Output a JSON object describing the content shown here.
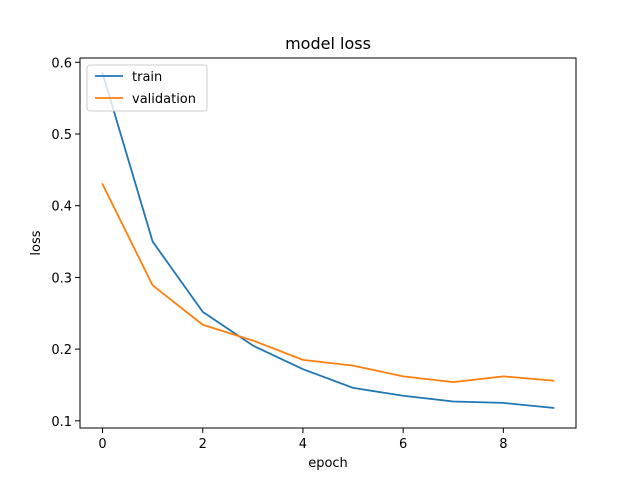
{
  "chart_data": {
    "type": "line",
    "title": "model loss",
    "xlabel": "epoch",
    "ylabel": "loss",
    "x": [
      0,
      1,
      2,
      3,
      4,
      5,
      6,
      7,
      8,
      9
    ],
    "xlim": [
      -0.45,
      9.45
    ],
    "ylim": [
      0.09,
      0.606
    ],
    "xticks": [
      0,
      2,
      4,
      6,
      8
    ],
    "yticks": [
      0.1,
      0.2,
      0.3,
      0.4,
      0.5,
      0.6
    ],
    "grid": false,
    "legend_position": "upper-left",
    "series": [
      {
        "name": "train",
        "color": "#1f77b4",
        "values": [
          0.585,
          0.35,
          0.252,
          0.205,
          0.172,
          0.146,
          0.135,
          0.127,
          0.125,
          0.118
        ]
      },
      {
        "name": "validation",
        "color": "#ff7f0e",
        "values": [
          0.43,
          0.289,
          0.234,
          0.212,
          0.185,
          0.177,
          0.162,
          0.154,
          0.162,
          0.156
        ]
      }
    ]
  }
}
